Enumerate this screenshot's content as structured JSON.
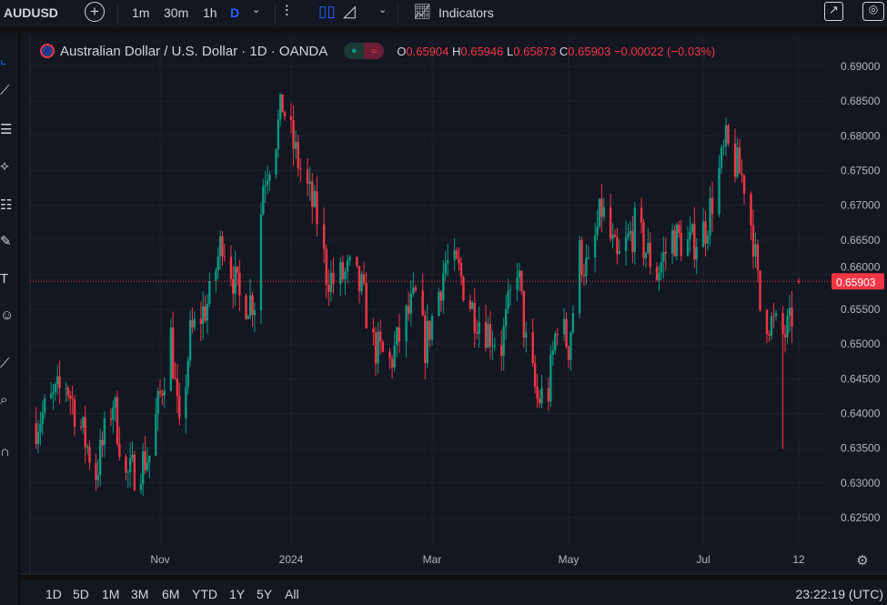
{
  "toolbar": {
    "symbol": "AUDUSD",
    "intervals": [
      "1m",
      "30m",
      "1h",
      "D"
    ],
    "indicators_label": "Indicators",
    "icons": [
      "plus-circle-icon",
      "chevron-down-icon",
      "bar-chart-icon",
      "candles-icon",
      "area-chart-icon",
      "indicators-icon",
      "fullscreen-icon",
      "camera-icon"
    ]
  },
  "legend": {
    "title": "Australian Dollar / U.S. Dollar · 1D · OANDA",
    "o_label": "O",
    "o": "0.65904",
    "h_label": "H",
    "h": "0.65946",
    "l_label": "L",
    "l": "0.65873",
    "c_label": "C",
    "c": "0.65903",
    "change": "−0.00022 (−0.03%)"
  },
  "range_bar": {
    "ranges": [
      "1D",
      "5D",
      "1M",
      "3M",
      "6M",
      "YTD",
      "1Y",
      "5Y",
      "All"
    ],
    "clock": "23:22:19 (UTC)"
  },
  "colors": {
    "up": "#089981",
    "down": "#f23645",
    "background": "#131722"
  },
  "chart_data": {
    "type": "candlestick",
    "title": "Australian Dollar / U.S. Dollar · 1D · OANDA",
    "ylim": [
      0.6225,
      0.6915
    ],
    "yticks": [
      "0.69000",
      "0.68500",
      "0.68000",
      "0.67500",
      "0.67000",
      "0.66500",
      "0.66000",
      "0.65500",
      "0.65000",
      "0.64500",
      "0.64000",
      "0.63500",
      "0.63000",
      "0.62500"
    ],
    "xticks": [
      [
        "Nov",
        "2023-11-01"
      ],
      [
        "2024",
        "2024-01-01"
      ],
      [
        "Mar",
        "2024-03-01"
      ],
      [
        "May",
        "2024-05-01"
      ],
      [
        "Jul",
        "2024-07-01"
      ],
      [
        "12",
        "2024-08-12"
      ]
    ],
    "last_price": "0.65903",
    "grid": true,
    "approx_closes": [
      [
        "2023-09-04",
        0.6386
      ],
      [
        "2023-09-18",
        0.6445
      ],
      [
        "2023-10-02",
        0.6314
      ],
      [
        "2023-10-10",
        0.6419
      ],
      [
        "2023-10-16",
        0.6307
      ],
      [
        "2023-10-27",
        0.634
      ],
      [
        "2023-11-06",
        0.6511
      ],
      [
        "2023-11-10",
        0.6366
      ],
      [
        "2023-11-15",
        0.6511
      ],
      [
        "2023-11-24",
        0.6564
      ],
      [
        "2023-11-30",
        0.6655
      ],
      [
        "2023-12-08",
        0.6564
      ],
      [
        "2023-12-15",
        0.6564
      ],
      [
        "2023-12-19",
        0.6734
      ],
      [
        "2023-12-25",
        0.68
      ],
      [
        "2023-12-28",
        0.6845
      ],
      [
        "2024-01-03",
        0.6773
      ],
      [
        "2024-01-08",
        0.6721
      ],
      [
        "2024-01-12",
        0.6682
      ],
      [
        "2024-01-16",
        0.6603
      ],
      [
        "2024-01-19",
        0.659
      ],
      [
        "2024-01-26",
        0.6603
      ],
      [
        "2024-01-31",
        0.6577
      ],
      [
        "2024-02-05",
        0.6498
      ],
      [
        "2024-02-12",
        0.6472
      ],
      [
        "2024-02-19",
        0.6537
      ],
      [
        "2024-02-23",
        0.6564
      ],
      [
        "2024-02-27",
        0.6498
      ],
      [
        "2024-03-07",
        0.6616
      ],
      [
        "2024-03-13",
        0.6603
      ],
      [
        "2024-03-19",
        0.6551
      ],
      [
        "2024-03-25",
        0.6524
      ],
      [
        "2024-04-01",
        0.6498
      ],
      [
        "2024-04-08",
        0.6616
      ],
      [
        "2024-04-12",
        0.6498
      ],
      [
        "2024-04-17",
        0.6419
      ],
      [
        "2024-04-22",
        0.6432
      ],
      [
        "2024-04-26",
        0.6537
      ],
      [
        "2024-05-01",
        0.6498
      ],
      [
        "2024-05-06",
        0.6629
      ],
      [
        "2024-05-10",
        0.6603
      ],
      [
        "2024-05-16",
        0.6695
      ],
      [
        "2024-05-23",
        0.6616
      ],
      [
        "2024-05-31",
        0.6668
      ],
      [
        "2024-06-10",
        0.6603
      ],
      [
        "2024-06-17",
        0.6655
      ],
      [
        "2024-06-25",
        0.6642
      ],
      [
        "2024-07-02",
        0.6668
      ],
      [
        "2024-07-08",
        0.6747
      ],
      [
        "2024-07-11",
        0.6786
      ],
      [
        "2024-07-19",
        0.6734
      ],
      [
        "2024-07-23",
        0.6655
      ],
      [
        "2024-07-26",
        0.6551
      ],
      [
        "2024-08-05",
        0.6511
      ],
      [
        "2024-08-08",
        0.6524
      ],
      [
        "2024-08-12",
        0.65903
      ]
    ],
    "notable_low": [
      "2024-08-05",
      0.6349
    ],
    "last_candle": {
      "open": 0.65904,
      "high": 0.65946,
      "low": 0.65873,
      "close": 0.65903
    }
  }
}
